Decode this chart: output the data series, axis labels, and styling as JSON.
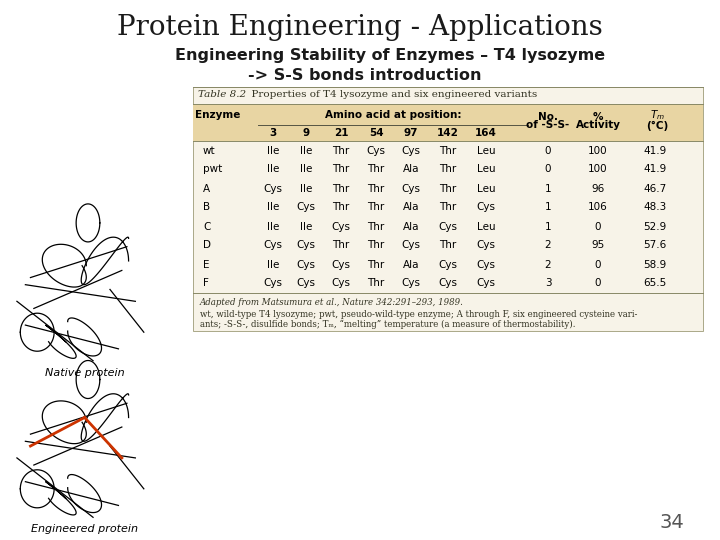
{
  "title": "Protein Engineering - Applications",
  "subtitle1": "Engineering Stability of Enzymes – T4 lysozyme",
  "subtitle2": "-> S-S bonds introduction",
  "table_title": "Table 8.2   Properties of T4 lysozyme and six engineered variants",
  "positions": [
    "3",
    "9",
    "21",
    "54",
    "97",
    "142",
    "164"
  ],
  "rows": [
    [
      "wt",
      "Ile",
      "Ile",
      "Thr",
      "Cys",
      "Cys",
      "Thr",
      "Leu",
      "0",
      "100",
      "41.9"
    ],
    [
      "pwt",
      "Ile",
      "Ile",
      "Thr",
      "Thr",
      "Ala",
      "Thr",
      "Leu",
      "0",
      "100",
      "41.9"
    ],
    [
      "A",
      "Cys",
      "Ile",
      "Thr",
      "Thr",
      "Cys",
      "Thr",
      "Leu",
      "1",
      "96",
      "46.7"
    ],
    [
      "B",
      "Ile",
      "Cys",
      "Thr",
      "Thr",
      "Ala",
      "Thr",
      "Cys",
      "1",
      "106",
      "48.3"
    ],
    [
      "C",
      "Ile",
      "Ile",
      "Cys",
      "Thr",
      "Ala",
      "Cys",
      "Leu",
      "1",
      "0",
      "52.9"
    ],
    [
      "D",
      "Cys",
      "Cys",
      "Thr",
      "Thr",
      "Cys",
      "Thr",
      "Cys",
      "2",
      "95",
      "57.6"
    ],
    [
      "E",
      "Ile",
      "Cys",
      "Cys",
      "Thr",
      "Ala",
      "Cys",
      "Cys",
      "2",
      "0",
      "58.9"
    ],
    [
      "F",
      "Cys",
      "Cys",
      "Cys",
      "Thr",
      "Cys",
      "Cys",
      "Cys",
      "3",
      "0",
      "65.5"
    ]
  ],
  "footnote1": "Adapted from Matsumura et al., Nature 342:291–293, 1989.",
  "footnote2": "wt, wild-type T4 lysozyme; pwt, pseudo-wild-type enzyme; A through F, six engineered cysteine vari-",
  "footnote3": "ants; -S-S-, disulfide bonds; Tₘ, “melting” temperature (a measure of thermostability).",
  "header_bg": "#e8d5a3",
  "table_bg": "#f7f3e8",
  "page_bg": "#ffffff",
  "page_number": "34",
  "font_color": "#1a1a1a",
  "line_color": "#888866"
}
